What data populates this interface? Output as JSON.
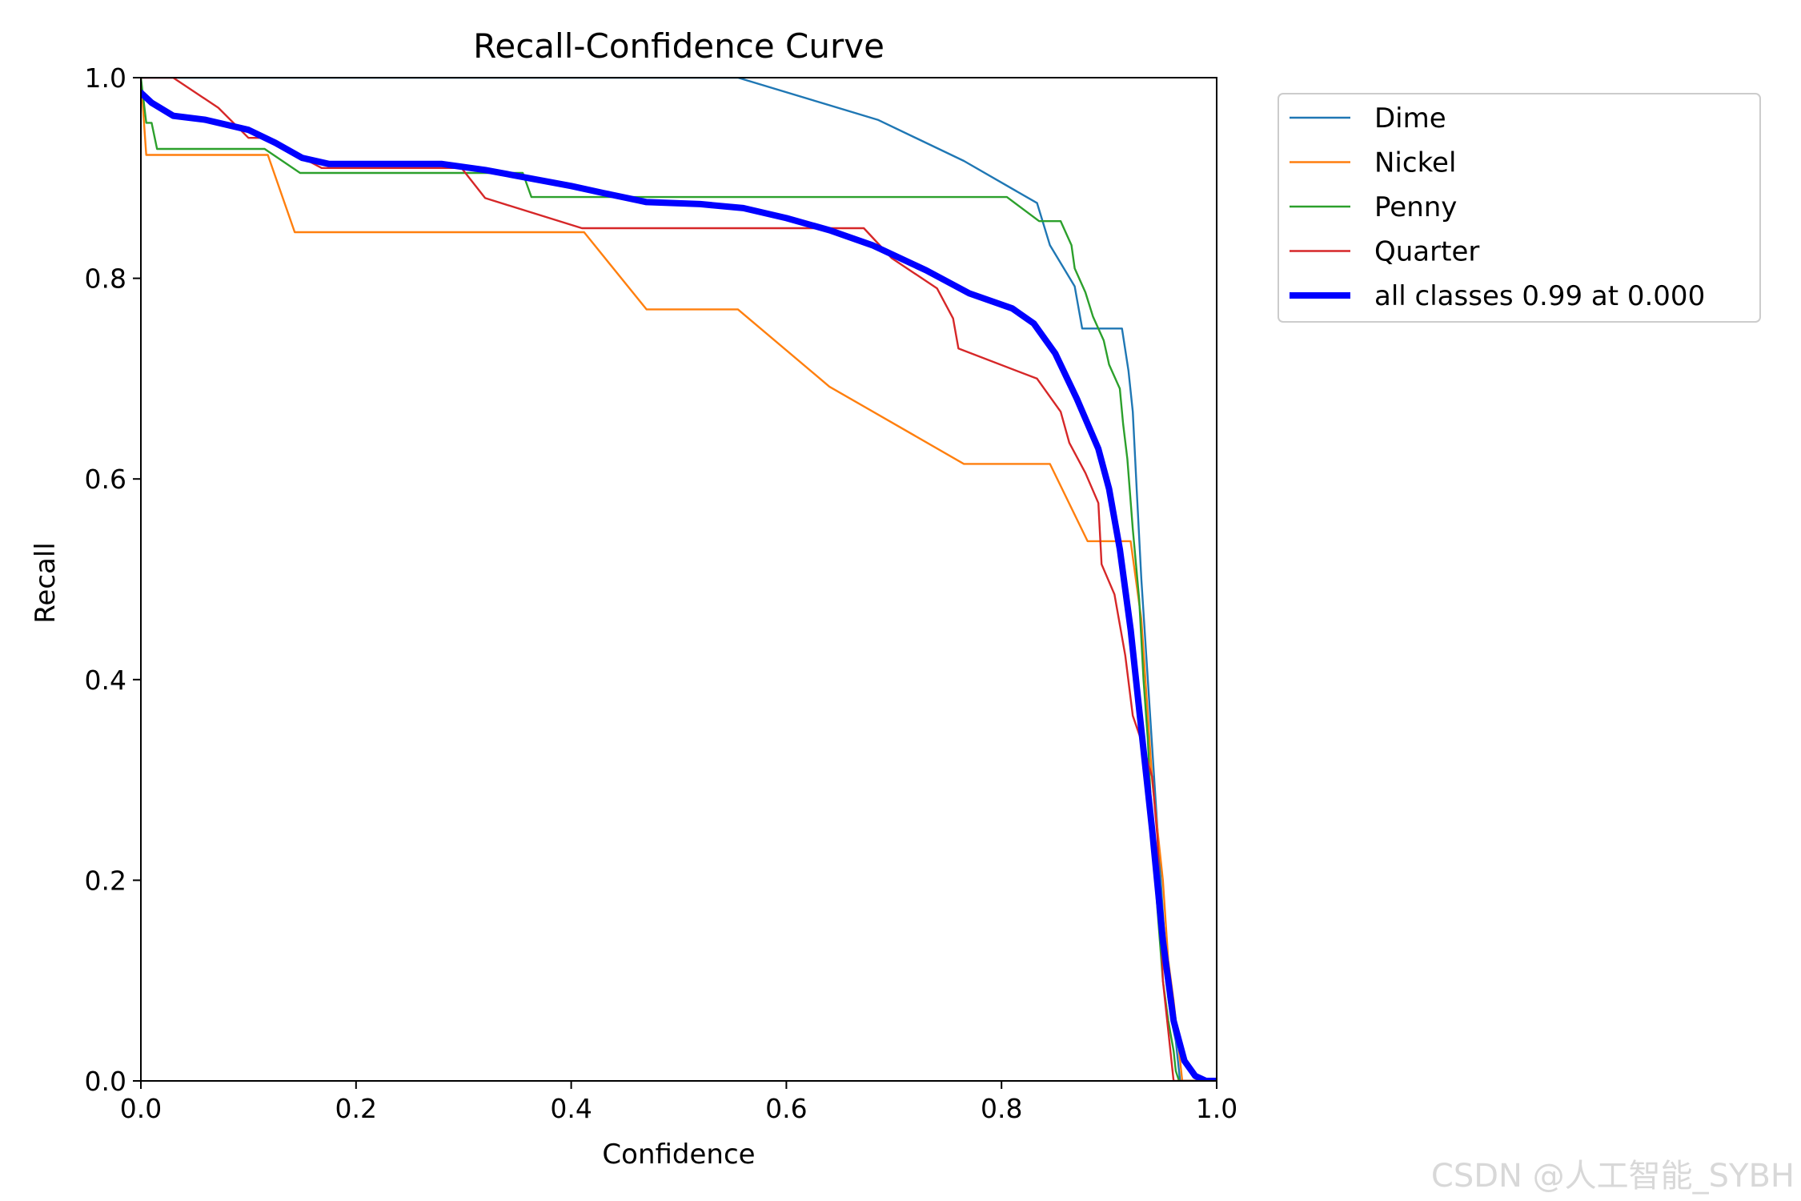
{
  "chart_data": {
    "type": "line",
    "title": "Recall-Confidence Curve",
    "xlabel": "Confidence",
    "ylabel": "Recall",
    "xlim": [
      0,
      1
    ],
    "ylim": [
      0,
      1
    ],
    "xticks": [
      "0.0",
      "0.2",
      "0.4",
      "0.6",
      "0.8",
      "1.0"
    ],
    "yticks": [
      "0.0",
      "0.2",
      "0.4",
      "0.6",
      "0.8",
      "1.0"
    ],
    "grid": false,
    "legend_position": "outside-top-right",
    "series": [
      {
        "name": "Dime",
        "label": "Dime",
        "color": "#1f77b4",
        "x": [
          0.0,
          0.555,
          0.685,
          0.765,
          0.833,
          0.845,
          0.868,
          0.875,
          0.912,
          0.918,
          0.922,
          0.926,
          0.93,
          0.935,
          0.94,
          0.945,
          0.95,
          0.955,
          0.958,
          0.962,
          0.966,
          1.0
        ],
        "y": [
          1.0,
          1.0,
          0.958,
          0.917,
          0.875,
          0.833,
          0.792,
          0.75,
          0.75,
          0.708,
          0.667,
          0.583,
          0.5,
          0.417,
          0.333,
          0.25,
          0.167,
          0.083,
          0.06,
          0.04,
          0.0,
          0.0
        ]
      },
      {
        "name": "Nickel",
        "label": "Nickel",
        "color": "#ff7f0e",
        "x": [
          0.0,
          0.005,
          0.118,
          0.143,
          0.412,
          0.47,
          0.555,
          0.64,
          0.765,
          0.845,
          0.88,
          0.92,
          0.93,
          0.94,
          0.945,
          0.95,
          0.955,
          0.96,
          0.963,
          0.968,
          1.0
        ],
        "y": [
          1.0,
          0.923,
          0.923,
          0.846,
          0.846,
          0.769,
          0.769,
          0.692,
          0.615,
          0.615,
          0.538,
          0.538,
          0.46,
          0.3,
          0.25,
          0.2,
          0.12,
          0.08,
          0.05,
          0.0,
          0.0
        ]
      },
      {
        "name": "Penny",
        "label": "Penny",
        "color": "#2ca02c",
        "x": [
          0.0,
          0.005,
          0.01,
          0.015,
          0.115,
          0.148,
          0.355,
          0.363,
          0.805,
          0.835,
          0.855,
          0.865,
          0.868,
          0.878,
          0.885,
          0.895,
          0.9,
          0.91,
          0.913,
          0.917,
          0.922,
          0.928,
          0.932,
          0.936,
          0.94,
          0.945,
          0.95,
          0.955,
          0.96,
          0.962,
          0.965,
          1.0
        ],
        "y": [
          1.0,
          0.955,
          0.955,
          0.929,
          0.929,
          0.905,
          0.905,
          0.881,
          0.881,
          0.857,
          0.857,
          0.833,
          0.81,
          0.786,
          0.762,
          0.738,
          0.714,
          0.69,
          0.655,
          0.62,
          0.55,
          0.48,
          0.4,
          0.34,
          0.25,
          0.17,
          0.1,
          0.06,
          0.03,
          0.01,
          0.0,
          0.0
        ]
      },
      {
        "name": "Quarter",
        "label": "Quarter",
        "color": "#d62728",
        "x": [
          0.0,
          0.03,
          0.072,
          0.1,
          0.115,
          0.168,
          0.298,
          0.32,
          0.41,
          0.672,
          0.698,
          0.74,
          0.755,
          0.76,
          0.833,
          0.855,
          0.863,
          0.878,
          0.89,
          0.893,
          0.905,
          0.915,
          0.922,
          0.932,
          0.94,
          0.945,
          0.95,
          0.955,
          0.96,
          1.0
        ],
        "y": [
          1.0,
          1.0,
          0.97,
          0.94,
          0.94,
          0.91,
          0.91,
          0.88,
          0.85,
          0.85,
          0.82,
          0.79,
          0.76,
          0.73,
          0.7,
          0.667,
          0.636,
          0.606,
          0.576,
          0.515,
          0.485,
          0.424,
          0.364,
          0.333,
          0.303,
          0.242,
          0.1,
          0.05,
          0.0,
          0.0
        ]
      },
      {
        "name": "all classes",
        "label": "all classes 0.99 at 0.000",
        "color": "#0000ff",
        "thick": true,
        "x": [
          0.0,
          0.01,
          0.03,
          0.06,
          0.1,
          0.125,
          0.15,
          0.175,
          0.2,
          0.25,
          0.28,
          0.32,
          0.36,
          0.4,
          0.43,
          0.47,
          0.52,
          0.56,
          0.6,
          0.64,
          0.68,
          0.73,
          0.77,
          0.81,
          0.83,
          0.85,
          0.87,
          0.89,
          0.9,
          0.91,
          0.92,
          0.93,
          0.94,
          0.95,
          0.96,
          0.97,
          0.98,
          0.99,
          1.0
        ],
        "y": [
          0.985,
          0.975,
          0.962,
          0.958,
          0.948,
          0.935,
          0.92,
          0.914,
          0.914,
          0.914,
          0.914,
          0.908,
          0.9,
          0.892,
          0.885,
          0.876,
          0.874,
          0.87,
          0.86,
          0.848,
          0.833,
          0.808,
          0.785,
          0.77,
          0.755,
          0.725,
          0.68,
          0.63,
          0.59,
          0.53,
          0.45,
          0.35,
          0.25,
          0.14,
          0.06,
          0.02,
          0.005,
          0.0,
          0.0
        ]
      }
    ]
  },
  "watermark": "CSDN @人工智能_SYBH"
}
